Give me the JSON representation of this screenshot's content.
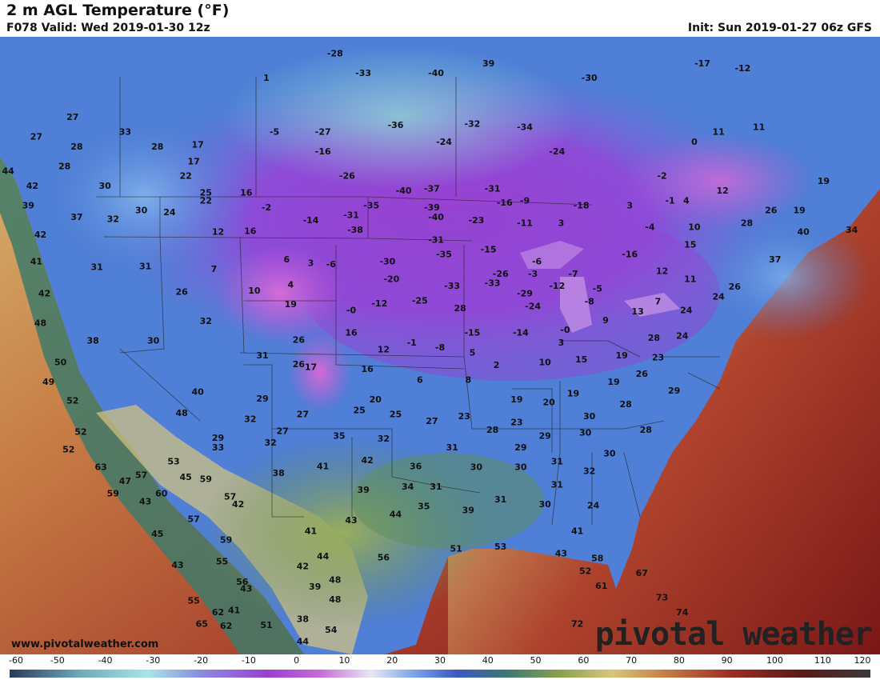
{
  "header": {
    "title": "2 m AGL Temperature (°F)",
    "valid": "F078 Valid: Wed 2019-01-30 12z",
    "init": "Init: Sun 2019-01-27 06z GFS"
  },
  "footer": {
    "site": "www.pivotalweather.com",
    "brand": "pivotal weather"
  },
  "colors": {
    "ocean_warm": "#8a1f1a",
    "ocean_mid": "#c46a3a",
    "coast_cool": "#2f6f6a",
    "land_cold": "#3a5fc0",
    "land_frigid": "#8a3fc8",
    "land_extreme": "#b44fd8",
    "land_mild": "#5f8a45"
  },
  "scale": {
    "ticks": [
      "-60",
      "-50",
      "-40",
      "-30",
      "-20",
      "-10",
      "0",
      "10",
      "20",
      "30",
      "40",
      "50",
      "60",
      "70",
      "80",
      "90",
      "100",
      "110",
      "120"
    ],
    "min": -60,
    "max": 120
  },
  "temperatures": [
    {
      "v": "27",
      "lon": -128.0,
      "lat": 53.5
    },
    {
      "v": "33",
      "lon": -121.5,
      "lat": 52.0
    },
    {
      "v": "27",
      "lon": -132.5,
      "lat": 51.5
    },
    {
      "v": "28",
      "lon": -127.5,
      "lat": 50.5
    },
    {
      "v": "28",
      "lon": -117.5,
      "lat": 50.5
    },
    {
      "v": "17",
      "lon": -112.5,
      "lat": 50.7
    },
    {
      "v": "28",
      "lon": -129.0,
      "lat": 48.5
    },
    {
      "v": "17",
      "lon": -113.0,
      "lat": 49.0
    },
    {
      "v": "22",
      "lon": -114.0,
      "lat": 47.5
    },
    {
      "v": "30",
      "lon": -124.0,
      "lat": 46.5
    },
    {
      "v": "25",
      "lon": -111.5,
      "lat": 45.8
    },
    {
      "v": "16",
      "lon": -106.5,
      "lat": 45.8
    },
    {
      "v": "1",
      "lon": -104.0,
      "lat": 57.5
    },
    {
      "v": "-28",
      "lon": -95.5,
      "lat": 60.0
    },
    {
      "v": "-33",
      "lon": -92.0,
      "lat": 58.0
    },
    {
      "v": "-40",
      "lon": -83.0,
      "lat": 58.0
    },
    {
      "v": "39",
      "lon": -76.5,
      "lat": 59.0
    },
    {
      "v": "-30",
      "lon": -64.0,
      "lat": 57.5
    },
    {
      "v": "-17",
      "lon": -50.0,
      "lat": 59.0
    },
    {
      "v": "-12",
      "lon": -45.0,
      "lat": 58.5
    },
    {
      "v": "-5",
      "lon": -103.0,
      "lat": 52.0
    },
    {
      "v": "-27",
      "lon": -97.0,
      "lat": 52.0
    },
    {
      "v": "-36",
      "lon": -88.0,
      "lat": 52.7
    },
    {
      "v": "-32",
      "lon": -78.5,
      "lat": 52.8
    },
    {
      "v": "-34",
      "lon": -72.0,
      "lat": 52.5
    },
    {
      "v": "-24",
      "lon": -82.0,
      "lat": 51.0
    },
    {
      "v": "-16",
      "lon": -97.0,
      "lat": 50.0
    },
    {
      "v": "-24",
      "lon": -68.0,
      "lat": 50.0
    },
    {
      "v": "11",
      "lon": -48.0,
      "lat": 52.0
    },
    {
      "v": "11",
      "lon": -43.0,
      "lat": 52.5
    },
    {
      "v": "0",
      "lon": -51.0,
      "lat": 51.0
    },
    {
      "v": "-26",
      "lon": -94.0,
      "lat": 47.5
    },
    {
      "v": "-40",
      "lon": -87.0,
      "lat": 46.0
    },
    {
      "v": "-37",
      "lon": -83.5,
      "lat": 46.2
    },
    {
      "v": "-31",
      "lon": -76.0,
      "lat": 46.2
    },
    {
      "v": "-2",
      "lon": -55.0,
      "lat": 47.5
    },
    {
      "v": "-1",
      "lon": -54.0,
      "lat": 45.0
    },
    {
      "v": "12",
      "lon": -47.5,
      "lat": 46.0
    },
    {
      "v": "19",
      "lon": -35.0,
      "lat": 47.0
    },
    {
      "v": "-35",
      "lon": -91.0,
      "lat": 44.5
    },
    {
      "v": "-39",
      "lon": -83.5,
      "lat": 44.3
    },
    {
      "v": "-40",
      "lon": -83.0,
      "lat": 43.3
    },
    {
      "v": "-18",
      "lon": -65.0,
      "lat": 44.5
    },
    {
      "v": "3",
      "lon": -59.0,
      "lat": 44.5
    },
    {
      "v": "4",
      "lon": -52.0,
      "lat": 45.0
    },
    {
      "v": "26",
      "lon": -41.5,
      "lat": 44.0
    },
    {
      "v": "19",
      "lon": -38.0,
      "lat": 44.0
    },
    {
      "v": "-9",
      "lon": -72.0,
      "lat": 45.0
    },
    {
      "v": "-16",
      "lon": -74.5,
      "lat": 44.8
    },
    {
      "v": "-23",
      "lon": -78.0,
      "lat": 43.0
    },
    {
      "v": "-31",
      "lon": -93.5,
      "lat": 43.5
    },
    {
      "v": "-14",
      "lon": -98.5,
      "lat": 43.0
    },
    {
      "v": "-2",
      "lon": -104.0,
      "lat": 44.3
    },
    {
      "v": "-38",
      "lon": -93.0,
      "lat": 42.0
    },
    {
      "v": "-31",
      "lon": -83.0,
      "lat": 41.0
    },
    {
      "v": "-11",
      "lon": -72.0,
      "lat": 42.7
    },
    {
      "v": "3",
      "lon": -67.5,
      "lat": 42.7
    },
    {
      "v": "-4",
      "lon": -56.5,
      "lat": 42.3
    },
    {
      "v": "10",
      "lon": -51.0,
      "lat": 42.3
    },
    {
      "v": "28",
      "lon": -44.5,
      "lat": 42.7
    },
    {
      "v": "40",
      "lon": -37.5,
      "lat": 41.8
    },
    {
      "v": "34",
      "lon": -31.5,
      "lat": 42.0
    },
    {
      "v": "-35",
      "lon": -82.0,
      "lat": 39.5
    },
    {
      "v": "-15",
      "lon": -76.5,
      "lat": 40.0
    },
    {
      "v": "-30",
      "lon": -89.0,
      "lat": 38.8
    },
    {
      "v": "-6",
      "lon": -96.0,
      "lat": 38.5
    },
    {
      "v": "-6",
      "lon": -70.5,
      "lat": 38.8
    },
    {
      "v": "-26",
      "lon": -75.0,
      "lat": 37.5
    },
    {
      "v": "-3",
      "lon": -71.0,
      "lat": 37.5
    },
    {
      "v": "-7",
      "lon": -66.0,
      "lat": 37.5
    },
    {
      "v": "-16",
      "lon": -59.0,
      "lat": 39.5
    },
    {
      "v": "15",
      "lon": -51.5,
      "lat": 40.5
    },
    {
      "v": "12",
      "lon": -55.0,
      "lat": 37.8
    },
    {
      "v": "11",
      "lon": -51.5,
      "lat": 37.0
    },
    {
      "v": "37",
      "lon": -41.0,
      "lat": 39.0
    },
    {
      "v": "-20",
      "lon": -88.5,
      "lat": 37.0
    },
    {
      "v": "-33",
      "lon": -81.0,
      "lat": 36.3
    },
    {
      "v": "-33",
      "lon": -76.0,
      "lat": 36.6
    },
    {
      "v": "-29",
      "lon": -72.0,
      "lat": 35.5
    },
    {
      "v": "-12",
      "lon": -68.0,
      "lat": 36.3
    },
    {
      "v": "-5",
      "lon": -63.0,
      "lat": 36.0
    },
    {
      "v": "-8",
      "lon": -64.0,
      "lat": 34.7
    },
    {
      "v": "7",
      "lon": -55.5,
      "lat": 34.7
    },
    {
      "v": "24",
      "lon": -48.0,
      "lat": 35.2
    },
    {
      "v": "26",
      "lon": -46.0,
      "lat": 36.2
    },
    {
      "v": "-12",
      "lon": -90.0,
      "lat": 34.5
    },
    {
      "v": "-25",
      "lon": -85.0,
      "lat": 34.8
    },
    {
      "v": "28",
      "lon": -80.0,
      "lat": 34.0
    },
    {
      "v": "-24",
      "lon": -71.0,
      "lat": 34.2
    },
    {
      "v": "13",
      "lon": -58.0,
      "lat": 33.7
    },
    {
      "v": "24",
      "lon": -52.0,
      "lat": 33.8
    },
    {
      "v": "9",
      "lon": -62.0,
      "lat": 32.8
    },
    {
      "v": "-0",
      "lon": -93.5,
      "lat": 33.8
    },
    {
      "v": "-0",
      "lon": -67.0,
      "lat": 31.8
    },
    {
      "v": "-15",
      "lon": -78.5,
      "lat": 31.5
    },
    {
      "v": "-14",
      "lon": -72.5,
      "lat": 31.5
    },
    {
      "v": "3",
      "lon": -67.5,
      "lat": 30.5
    },
    {
      "v": "28",
      "lon": -56.0,
      "lat": 31.0
    },
    {
      "v": "24",
      "lon": -52.5,
      "lat": 31.2
    },
    {
      "v": "-1",
      "lon": -86.0,
      "lat": 30.5
    },
    {
      "v": "-8",
      "lon": -82.5,
      "lat": 30.0
    },
    {
      "v": "5",
      "lon": -78.5,
      "lat": 29.5
    },
    {
      "v": "12",
      "lon": -89.5,
      "lat": 29.8
    },
    {
      "v": "16",
      "lon": -93.5,
      "lat": 31.5
    },
    {
      "v": "2",
      "lon": -75.5,
      "lat": 28.2
    },
    {
      "v": "10",
      "lon": -69.5,
      "lat": 28.5
    },
    {
      "v": "15",
      "lon": -65.0,
      "lat": 28.8
    },
    {
      "v": "19",
      "lon": -60.0,
      "lat": 29.2
    },
    {
      "v": "23",
      "lon": -55.5,
      "lat": 29.0
    },
    {
      "v": "17",
      "lon": -98.5,
      "lat": 28.0
    },
    {
      "v": "16",
      "lon": -91.5,
      "lat": 27.8
    },
    {
      "v": "6",
      "lon": -85.0,
      "lat": 26.7
    },
    {
      "v": "8",
      "lon": -79.0,
      "lat": 26.7
    },
    {
      "v": "26",
      "lon": -57.5,
      "lat": 27.3
    },
    {
      "v": "19",
      "lon": -61.0,
      "lat": 26.5
    },
    {
      "v": "29",
      "lon": -53.5,
      "lat": 25.6
    },
    {
      "v": "19",
      "lon": -66.0,
      "lat": 25.3
    },
    {
      "v": "19",
      "lon": -73.0,
      "lat": 24.7
    },
    {
      "v": "20",
      "lon": -69.0,
      "lat": 24.4
    },
    {
      "v": "20",
      "lon": -90.5,
      "lat": 24.7
    },
    {
      "v": "28",
      "lon": -59.5,
      "lat": 24.2
    },
    {
      "v": "27",
      "lon": -99.5,
      "lat": 23.2
    },
    {
      "v": "25",
      "lon": -92.5,
      "lat": 23.6
    },
    {
      "v": "25",
      "lon": -88.0,
      "lat": 23.2
    },
    {
      "v": "27",
      "lon": -83.5,
      "lat": 22.5
    },
    {
      "v": "23",
      "lon": -79.5,
      "lat": 23.0
    },
    {
      "v": "23",
      "lon": -73.0,
      "lat": 22.4
    },
    {
      "v": "30",
      "lon": -64.0,
      "lat": 23.0
    },
    {
      "v": "28",
      "lon": -76.0,
      "lat": 21.6
    },
    {
      "v": "29",
      "lon": -69.5,
      "lat": 21.0
    },
    {
      "v": "30",
      "lon": -64.5,
      "lat": 21.3
    },
    {
      "v": "28",
      "lon": -57.0,
      "lat": 21.6
    },
    {
      "v": "32",
      "lon": -106.0,
      "lat": 22.7
    },
    {
      "v": "27",
      "lon": -102.0,
      "lat": 21.5
    },
    {
      "v": "35",
      "lon": -95.0,
      "lat": 21.0
    },
    {
      "v": "32",
      "lon": -89.5,
      "lat": 20.7
    },
    {
      "v": "31",
      "lon": -81.0,
      "lat": 19.8
    },
    {
      "v": "29",
      "lon": -72.5,
      "lat": 19.8
    },
    {
      "v": "30",
      "lon": -61.5,
      "lat": 19.2
    },
    {
      "v": "33",
      "lon": -110.0,
      "lat": 19.8
    },
    {
      "v": "32",
      "lon": -103.5,
      "lat": 20.3
    },
    {
      "v": "42",
      "lon": -91.5,
      "lat": 18.5
    },
    {
      "v": "36",
      "lon": -85.5,
      "lat": 17.9
    },
    {
      "v": "41",
      "lon": -97.0,
      "lat": 17.9
    },
    {
      "v": "38",
      "lon": -102.5,
      "lat": 17.2
    },
    {
      "v": "30",
      "lon": -78.0,
      "lat": 17.8
    },
    {
      "v": "30",
      "lon": -72.5,
      "lat": 17.8
    },
    {
      "v": "31",
      "lon": -68.0,
      "lat": 18.4
    },
    {
      "v": "32",
      "lon": -64.0,
      "lat": 17.4
    },
    {
      "v": "31",
      "lon": -83.0,
      "lat": 15.8
    },
    {
      "v": "34",
      "lon": -86.5,
      "lat": 15.8
    },
    {
      "v": "39",
      "lon": -92.0,
      "lat": 15.5
    },
    {
      "v": "45",
      "lon": -114.0,
      "lat": 16.8
    },
    {
      "v": "31",
      "lon": -68.0,
      "lat": 16.0
    },
    {
      "v": "31",
      "lon": -75.0,
      "lat": 14.5
    },
    {
      "v": "30",
      "lon": -69.5,
      "lat": 14.0
    },
    {
      "v": "24",
      "lon": -63.5,
      "lat": 13.9
    },
    {
      "v": "35",
      "lon": -84.5,
      "lat": 13.8
    },
    {
      "v": "39",
      "lon": -79.0,
      "lat": 13.4
    },
    {
      "v": "44",
      "lon": -88.0,
      "lat": 13.0
    },
    {
      "v": "43",
      "lon": -93.5,
      "lat": 12.4
    },
    {
      "v": "42",
      "lon": -107.5,
      "lat": 14.0
    },
    {
      "v": "43",
      "lon": -119.0,
      "lat": 14.3
    },
    {
      "v": "47",
      "lon": -121.5,
      "lat": 16.4
    },
    {
      "v": "41",
      "lon": -98.5,
      "lat": 11.3
    },
    {
      "v": "45",
      "lon": -117.5,
      "lat": 11.0
    },
    {
      "v": "41",
      "lon": -65.5,
      "lat": 11.3
    },
    {
      "v": "51",
      "lon": -80.5,
      "lat": 9.5
    },
    {
      "v": "53",
      "lon": -75.0,
      "lat": 9.7
    },
    {
      "v": "56",
      "lon": -89.5,
      "lat": 8.6
    },
    {
      "v": "44",
      "lon": -97.0,
      "lat": 8.7
    },
    {
      "v": "43",
      "lon": -67.5,
      "lat": 9.0
    },
    {
      "v": "58",
      "lon": -63.0,
      "lat": 8.5
    },
    {
      "v": "42",
      "lon": -99.5,
      "lat": 7.7
    },
    {
      "v": "43",
      "lon": -115.0,
      "lat": 7.8
    },
    {
      "v": "52",
      "lon": -64.5,
      "lat": 7.2
    },
    {
      "v": "67",
      "lon": -57.5,
      "lat": 7.0
    },
    {
      "v": "48",
      "lon": -95.5,
      "lat": 6.3
    },
    {
      "v": "61",
      "lon": -62.5,
      "lat": 5.7
    },
    {
      "v": "39",
      "lon": -98.0,
      "lat": 5.6
    },
    {
      "v": "43",
      "lon": -106.5,
      "lat": 5.4
    },
    {
      "v": "48",
      "lon": -95.5,
      "lat": 4.3
    },
    {
      "v": "73",
      "lon": -55.0,
      "lat": 4.5
    },
    {
      "v": "41",
      "lon": -108.0,
      "lat": 3.2
    },
    {
      "v": "74",
      "lon": -52.5,
      "lat": 3.0
    },
    {
      "v": "38",
      "lon": -99.5,
      "lat": 2.3
    },
    {
      "v": "51",
      "lon": -104.0,
      "lat": 1.7
    },
    {
      "v": "54",
      "lon": -96.0,
      "lat": 1.2
    },
    {
      "v": "72",
      "lon": -65.5,
      "lat": 1.8
    },
    {
      "v": "44",
      "lon": -99.5,
      "lat": 0.0
    },
    {
      "v": "65",
      "lon": -112.0,
      "lat": 1.8
    },
    {
      "v": "37",
      "lon": -127.5,
      "lat": 43.3
    },
    {
      "v": "32",
      "lon": -123.0,
      "lat": 43.1
    },
    {
      "v": "24",
      "lon": -116.0,
      "lat": 43.8
    },
    {
      "v": "22",
      "lon": -111.5,
      "lat": 45.0
    },
    {
      "v": "30",
      "lon": -119.5,
      "lat": 44.0
    },
    {
      "v": "12",
      "lon": -110.0,
      "lat": 41.8
    },
    {
      "v": "16",
      "lon": -106.0,
      "lat": 41.9
    },
    {
      "v": "42",
      "lon": -132.0,
      "lat": 41.5
    },
    {
      "v": "41",
      "lon": -132.5,
      "lat": 38.8
    },
    {
      "v": "31",
      "lon": -125.0,
      "lat": 38.2
    },
    {
      "v": "31",
      "lon": -119.0,
      "lat": 38.3
    },
    {
      "v": "7",
      "lon": -110.5,
      "lat": 38.0
    },
    {
      "v": "6",
      "lon": -101.5,
      "lat": 39.0
    },
    {
      "v": "3",
      "lon": -98.5,
      "lat": 38.6
    },
    {
      "v": "10",
      "lon": -105.5,
      "lat": 35.8
    },
    {
      "v": "4",
      "lon": -101.0,
      "lat": 36.4
    },
    {
      "v": "26",
      "lon": -114.5,
      "lat": 35.7
    },
    {
      "v": "42",
      "lon": -131.5,
      "lat": 35.5
    },
    {
      "v": "19",
      "lon": -101.0,
      "lat": 34.4
    },
    {
      "v": "48",
      "lon": -132.0,
      "lat": 32.5
    },
    {
      "v": "32",
      "lon": -111.5,
      "lat": 32.7
    },
    {
      "v": "38",
      "lon": -125.5,
      "lat": 30.7
    },
    {
      "v": "30",
      "lon": -118.0,
      "lat": 30.7
    },
    {
      "v": "26",
      "lon": -100.0,
      "lat": 30.8
    },
    {
      "v": "31",
      "lon": -104.5,
      "lat": 29.2
    },
    {
      "v": "50",
      "lon": -129.5,
      "lat": 28.5
    },
    {
      "v": "26",
      "lon": -100.0,
      "lat": 28.3
    },
    {
      "v": "49",
      "lon": -131.0,
      "lat": 26.5
    },
    {
      "v": "40",
      "lon": -112.5,
      "lat": 25.5
    },
    {
      "v": "29",
      "lon": -104.5,
      "lat": 24.8
    },
    {
      "v": "52",
      "lon": -128.0,
      "lat": 24.6
    },
    {
      "v": "48",
      "lon": -114.5,
      "lat": 23.3
    },
    {
      "v": "52",
      "lon": -127.0,
      "lat": 21.4
    },
    {
      "v": "29",
      "lon": -110.0,
      "lat": 20.8
    },
    {
      "v": "52",
      "lon": -128.5,
      "lat": 19.6
    },
    {
      "v": "53",
      "lon": -115.5,
      "lat": 18.4
    },
    {
      "v": "63",
      "lon": -124.5,
      "lat": 17.8
    },
    {
      "v": "57",
      "lon": -119.5,
      "lat": 17.0
    },
    {
      "v": "59",
      "lon": -111.5,
      "lat": 16.6
    },
    {
      "v": "59",
      "lon": -123.0,
      "lat": 15.1
    },
    {
      "v": "60",
      "lon": -117.0,
      "lat": 15.1
    },
    {
      "v": "57",
      "lon": -108.5,
      "lat": 14.8
    },
    {
      "v": "57",
      "lon": -113.0,
      "lat": 12.5
    },
    {
      "v": "59",
      "lon": -109.0,
      "lat": 10.4
    },
    {
      "v": "55",
      "lon": -109.5,
      "lat": 8.2
    },
    {
      "v": "56",
      "lon": -107.0,
      "lat": 6.1
    },
    {
      "v": "55",
      "lon": -113.0,
      "lat": 4.2
    },
    {
      "v": "62",
      "lon": -110.0,
      "lat": 3.0
    },
    {
      "v": "62",
      "lon": -109.0,
      "lat": 1.6
    },
    {
      "v": "39",
      "lon": -133.5,
      "lat": 44.5
    },
    {
      "v": "42",
      "lon": -133.0,
      "lat": 46.5
    },
    {
      "v": "44",
      "lon": -136.0,
      "lat": 48.0
    }
  ]
}
